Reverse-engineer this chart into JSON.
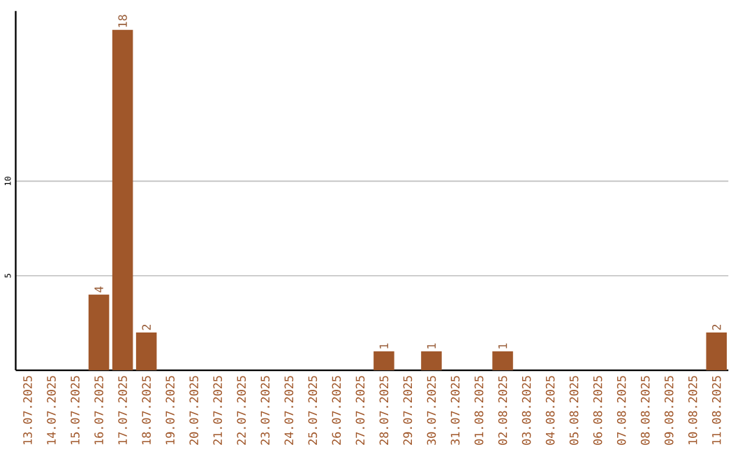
{
  "chart_data": {
    "type": "bar",
    "categories": [
      "13.07.2025",
      "14.07.2025",
      "15.07.2025",
      "16.07.2025",
      "17.07.2025",
      "18.07.2025",
      "19.07.2025",
      "20.07.2025",
      "21.07.2025",
      "22.07.2025",
      "23.07.2025",
      "24.07.2025",
      "25.07.2025",
      "26.07.2025",
      "27.07.2025",
      "28.07.2025",
      "29.07.2025",
      "30.07.2025",
      "31.07.2025",
      "01.08.2025",
      "02.08.2025",
      "03.08.2025",
      "04.08.2025",
      "05.08.2025",
      "06.08.2025",
      "07.08.2025",
      "08.08.2025",
      "09.08.2025",
      "10.08.2025",
      "11.08.2025"
    ],
    "values": [
      0,
      0,
      0,
      4,
      18,
      2,
      0,
      0,
      0,
      0,
      0,
      0,
      0,
      0,
      0,
      1,
      0,
      1,
      0,
      0,
      1,
      0,
      0,
      0,
      0,
      0,
      0,
      0,
      0,
      2
    ],
    "value_labels": [
      null,
      null,
      null,
      "4",
      "18",
      "2",
      null,
      null,
      null,
      null,
      null,
      null,
      null,
      null,
      null,
      "1",
      null,
      "1",
      null,
      null,
      "1",
      null,
      null,
      null,
      null,
      null,
      null,
      null,
      null,
      "2"
    ],
    "color": "#a0572a",
    "ylim": [
      0,
      19
    ],
    "yticks": [
      5,
      10
    ],
    "grid": "y"
  }
}
